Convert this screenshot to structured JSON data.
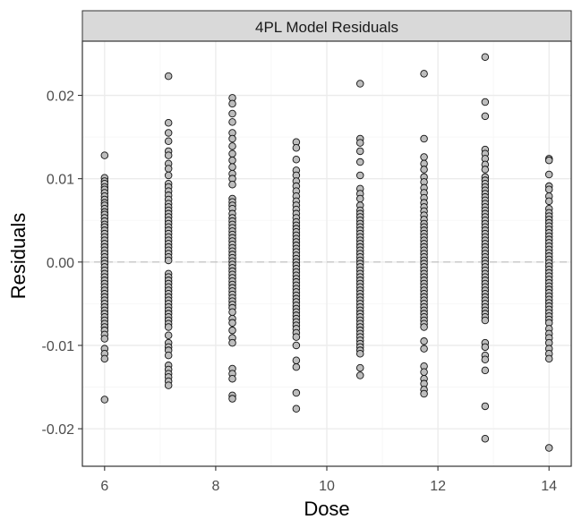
{
  "chart_data": {
    "type": "scatter",
    "title": "4PL Model Residuals",
    "xlabel": "Dose",
    "ylabel": "Residuals",
    "xlim": [
      5.6,
      14.4
    ],
    "ylim": [
      -0.0245,
      0.0265
    ],
    "x_ticks": [
      6,
      8,
      10,
      12,
      14
    ],
    "x_tick_labels": [
      "6",
      "8",
      "10",
      "12",
      "14"
    ],
    "y_ticks": [
      -0.02,
      -0.01,
      0.0,
      0.01,
      0.02
    ],
    "y_tick_labels": [
      "-0.02",
      "-0.01",
      "0.00",
      "0.01",
      "0.02"
    ],
    "grid": true,
    "reference_line": {
      "y": 0,
      "style": "dashed"
    },
    "colors": {
      "point_fill": "#bdbdbd",
      "point_stroke": "#111111",
      "strip_fill": "#d9d9d9",
      "panel_border": "#333333",
      "grid_major": "#ebebeb",
      "grid_minor": "#f5f5f5",
      "reference_line": "#bdbdbd"
    },
    "groups": [
      {
        "x": 6.0,
        "y": [
          0.0128,
          0.0101,
          0.0097,
          0.0094,
          0.009,
          0.0087,
          0.0083,
          0.0079,
          0.0075,
          0.0071,
          0.0068,
          0.0064,
          0.006,
          0.0057,
          0.0053,
          0.0049,
          0.0045,
          0.0042,
          0.0038,
          0.0034,
          0.003,
          0.0026,
          0.0022,
          0.0018,
          0.0014,
          0.001,
          0.0006,
          0.0002,
          -0.0002,
          -0.0006,
          -0.001,
          -0.0014,
          -0.0018,
          -0.0022,
          -0.0026,
          -0.003,
          -0.0034,
          -0.0038,
          -0.0042,
          -0.0046,
          -0.005,
          -0.0054,
          -0.0058,
          -0.0062,
          -0.0066,
          -0.007,
          -0.0074,
          -0.0078,
          -0.0082,
          -0.0087,
          -0.0092,
          -0.0104,
          -0.011,
          -0.0116,
          -0.0165
        ]
      },
      {
        "x": 7.15,
        "y": [
          0.0223,
          0.0167,
          0.0155,
          0.0145,
          0.0133,
          0.0128,
          0.0118,
          0.0112,
          0.0104,
          0.0094,
          0.009,
          0.0085,
          0.008,
          0.0075,
          0.007,
          0.0066,
          0.0062,
          0.0058,
          0.0054,
          0.005,
          0.0046,
          0.0042,
          0.0038,
          0.0034,
          0.003,
          0.0026,
          0.0022,
          0.0018,
          0.0014,
          0.001,
          0.0006,
          0.0002,
          -0.0014,
          -0.0018,
          -0.0022,
          -0.0026,
          -0.003,
          -0.0034,
          -0.0038,
          -0.0042,
          -0.0046,
          -0.005,
          -0.0054,
          -0.0058,
          -0.0062,
          -0.0066,
          -0.007,
          -0.0074,
          -0.0078,
          -0.0088,
          -0.0097,
          -0.0102,
          -0.0106,
          -0.0112,
          -0.0124,
          -0.0129,
          -0.0134,
          -0.0138,
          -0.0143,
          -0.0148
        ]
      },
      {
        "x": 8.3,
        "y": [
          0.0197,
          0.019,
          0.0178,
          0.0168,
          0.0155,
          0.0148,
          0.0139,
          0.013,
          0.0122,
          0.0114,
          0.0106,
          0.01,
          0.0093,
          0.0076,
          0.0072,
          0.0068,
          0.0064,
          0.0058,
          0.0053,
          0.0049,
          0.0045,
          0.0041,
          0.0037,
          0.0033,
          0.0029,
          0.0025,
          0.0021,
          0.0017,
          0.0013,
          0.0009,
          0.0005,
          0.0001,
          -0.0003,
          -0.0007,
          -0.0011,
          -0.0015,
          -0.0019,
          -0.0023,
          -0.0027,
          -0.0031,
          -0.0035,
          -0.0039,
          -0.0043,
          -0.0047,
          -0.0051,
          -0.0055,
          -0.006,
          -0.0068,
          -0.0073,
          -0.0082,
          -0.0091,
          -0.0097,
          -0.0128,
          -0.0134,
          -0.014,
          -0.016,
          -0.0164
        ]
      },
      {
        "x": 9.45,
        "y": [
          0.0144,
          0.0137,
          0.0123,
          0.011,
          0.0104,
          0.0097,
          0.0091,
          0.0085,
          0.0079,
          0.0073,
          0.0068,
          0.0063,
          0.0058,
          0.0053,
          0.0048,
          0.0044,
          0.004,
          0.0036,
          0.0032,
          0.0028,
          0.0024,
          0.002,
          0.0016,
          0.0012,
          0.0008,
          0.0004,
          0.0,
          -0.0004,
          -0.0008,
          -0.0012,
          -0.0016,
          -0.002,
          -0.0024,
          -0.0028,
          -0.0032,
          -0.0036,
          -0.004,
          -0.0044,
          -0.0048,
          -0.0052,
          -0.0056,
          -0.006,
          -0.0064,
          -0.0068,
          -0.0072,
          -0.0076,
          -0.008,
          -0.0085,
          -0.009,
          -0.01,
          -0.0118,
          -0.0126,
          -0.0157,
          -0.0176
        ]
      },
      {
        "x": 10.6,
        "y": [
          0.0214,
          0.0148,
          0.0143,
          0.0133,
          0.012,
          0.0104,
          0.0088,
          0.0082,
          0.0076,
          0.0068,
          0.0062,
          0.0058,
          0.0054,
          0.005,
          0.0046,
          0.0042,
          0.0038,
          0.0034,
          0.003,
          0.0026,
          0.0022,
          0.0018,
          0.0014,
          0.001,
          0.0006,
          0.0002,
          -0.0002,
          -0.0006,
          -0.001,
          -0.0014,
          -0.0018,
          -0.0022,
          -0.0026,
          -0.003,
          -0.0034,
          -0.0038,
          -0.0042,
          -0.0046,
          -0.005,
          -0.0054,
          -0.0058,
          -0.0062,
          -0.0066,
          -0.007,
          -0.0074,
          -0.0078,
          -0.0082,
          -0.0086,
          -0.009,
          -0.0094,
          -0.0098,
          -0.0102,
          -0.0106,
          -0.011,
          -0.0127,
          -0.0136
        ]
      },
      {
        "x": 11.75,
        "y": [
          0.0226,
          0.0148,
          0.0126,
          0.0118,
          0.0111,
          0.0102,
          0.0096,
          0.0089,
          0.0083,
          0.0077,
          0.0071,
          0.0066,
          0.0061,
          0.0056,
          0.0051,
          0.0046,
          0.0042,
          0.0038,
          0.0034,
          0.003,
          0.0026,
          0.0022,
          0.0018,
          0.0014,
          0.001,
          0.0006,
          0.0002,
          -0.0002,
          -0.0006,
          -0.001,
          -0.0014,
          -0.0018,
          -0.0022,
          -0.0026,
          -0.003,
          -0.0034,
          -0.0038,
          -0.0042,
          -0.0046,
          -0.005,
          -0.0054,
          -0.0058,
          -0.0062,
          -0.0066,
          -0.007,
          -0.0074,
          -0.0078,
          -0.0095,
          -0.0104,
          -0.0125,
          -0.0132,
          -0.014,
          -0.0146,
          -0.0153,
          -0.0158
        ]
      },
      {
        "x": 12.85,
        "y": [
          0.0246,
          0.0192,
          0.0175,
          0.0135,
          0.013,
          0.0124,
          0.0117,
          0.0111,
          0.0102,
          0.0098,
          0.0094,
          0.009,
          0.0086,
          0.0082,
          0.0078,
          0.0074,
          0.007,
          0.0066,
          0.0062,
          0.0058,
          0.0054,
          0.005,
          0.0046,
          0.0042,
          0.0038,
          0.0034,
          0.003,
          0.0026,
          0.0022,
          0.0018,
          0.0014,
          0.001,
          0.0006,
          0.0002,
          -0.0002,
          -0.0006,
          -0.001,
          -0.0014,
          -0.0018,
          -0.0022,
          -0.0026,
          -0.003,
          -0.0034,
          -0.0038,
          -0.0042,
          -0.0046,
          -0.005,
          -0.0054,
          -0.0058,
          -0.0062,
          -0.0066,
          -0.007,
          -0.0097,
          -0.0102,
          -0.0112,
          -0.0117,
          -0.013,
          -0.0173,
          -0.0212
        ]
      },
      {
        "x": 14.0,
        "y": [
          0.0124,
          0.0122,
          0.0105,
          0.0091,
          0.0087,
          0.0079,
          0.0073,
          0.0064,
          0.0059,
          0.0055,
          0.0051,
          0.0047,
          0.0043,
          0.0039,
          0.0035,
          0.0031,
          0.0027,
          0.0023,
          0.0019,
          0.0015,
          0.0011,
          0.0007,
          0.0003,
          -0.0001,
          -0.0005,
          -0.0009,
          -0.0013,
          -0.0017,
          -0.0021,
          -0.0025,
          -0.0029,
          -0.0033,
          -0.0037,
          -0.0041,
          -0.0045,
          -0.0049,
          -0.0053,
          -0.0057,
          -0.0061,
          -0.0065,
          -0.0069,
          -0.0073,
          -0.008,
          -0.0086,
          -0.0091,
          -0.0097,
          -0.0104,
          -0.011,
          -0.0116,
          -0.0223
        ]
      }
    ]
  }
}
